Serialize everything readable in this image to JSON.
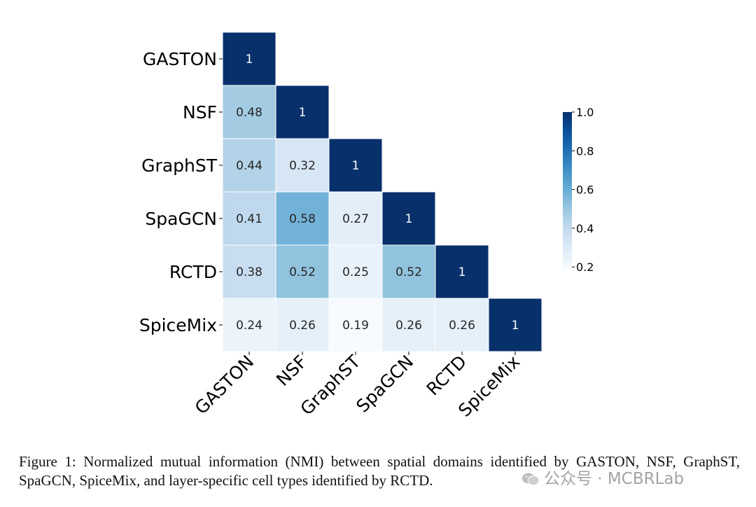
{
  "chart_data": {
    "type": "heatmap",
    "title": "",
    "rows": [
      "GASTON",
      "NSF",
      "GraphST",
      "SpaGCN",
      "RCTD",
      "SpiceMix"
    ],
    "cols": [
      "GASTON",
      "NSF",
      "GraphST",
      "SpaGCN",
      "RCTD",
      "SpiceMix"
    ],
    "values": [
      [
        1,
        null,
        null,
        null,
        null,
        null
      ],
      [
        0.48,
        1,
        null,
        null,
        null,
        null
      ],
      [
        0.44,
        0.32,
        1,
        null,
        null,
        null
      ],
      [
        0.41,
        0.58,
        0.27,
        1,
        null,
        null
      ],
      [
        0.38,
        0.52,
        0.25,
        0.52,
        1,
        null
      ],
      [
        0.24,
        0.26,
        0.19,
        0.26,
        0.26,
        1
      ]
    ],
    "labels": [
      [
        "1",
        "",
        "",
        "",
        "",
        ""
      ],
      [
        "0.48",
        "1",
        "",
        "",
        "",
        ""
      ],
      [
        "0.44",
        "0.32",
        "1",
        "",
        "",
        ""
      ],
      [
        "0.41",
        "0.58",
        "0.27",
        "1",
        "",
        ""
      ],
      [
        "0.38",
        "0.52",
        "0.25",
        "0.52",
        "1",
        ""
      ],
      [
        "0.24",
        "0.26",
        "0.19",
        "0.26",
        "0.26",
        "1"
      ]
    ],
    "colormap": "Blues",
    "vmin": 0.19,
    "vmax": 1.0,
    "colorbar": {
      "ticks": [
        0.2,
        0.4,
        0.6,
        0.8,
        1.0
      ],
      "tick_labels": [
        "0.2",
        "0.4",
        "0.6",
        "0.8",
        "1.0"
      ]
    },
    "mask": "upper-triangle"
  },
  "caption": "Figure 1: Normalized mutual information (NMI) between spatial domains identified by GASTON, NSF, GraphST, SpaGCN, SpiceMix, and layer-specific cell types identified by RCTD.",
  "watermark": {
    "text": "公众号 · MCBRLab",
    "icon": "wechat-icon"
  },
  "colors": {
    "dark": "#08306b",
    "light": "#f7fbff"
  }
}
